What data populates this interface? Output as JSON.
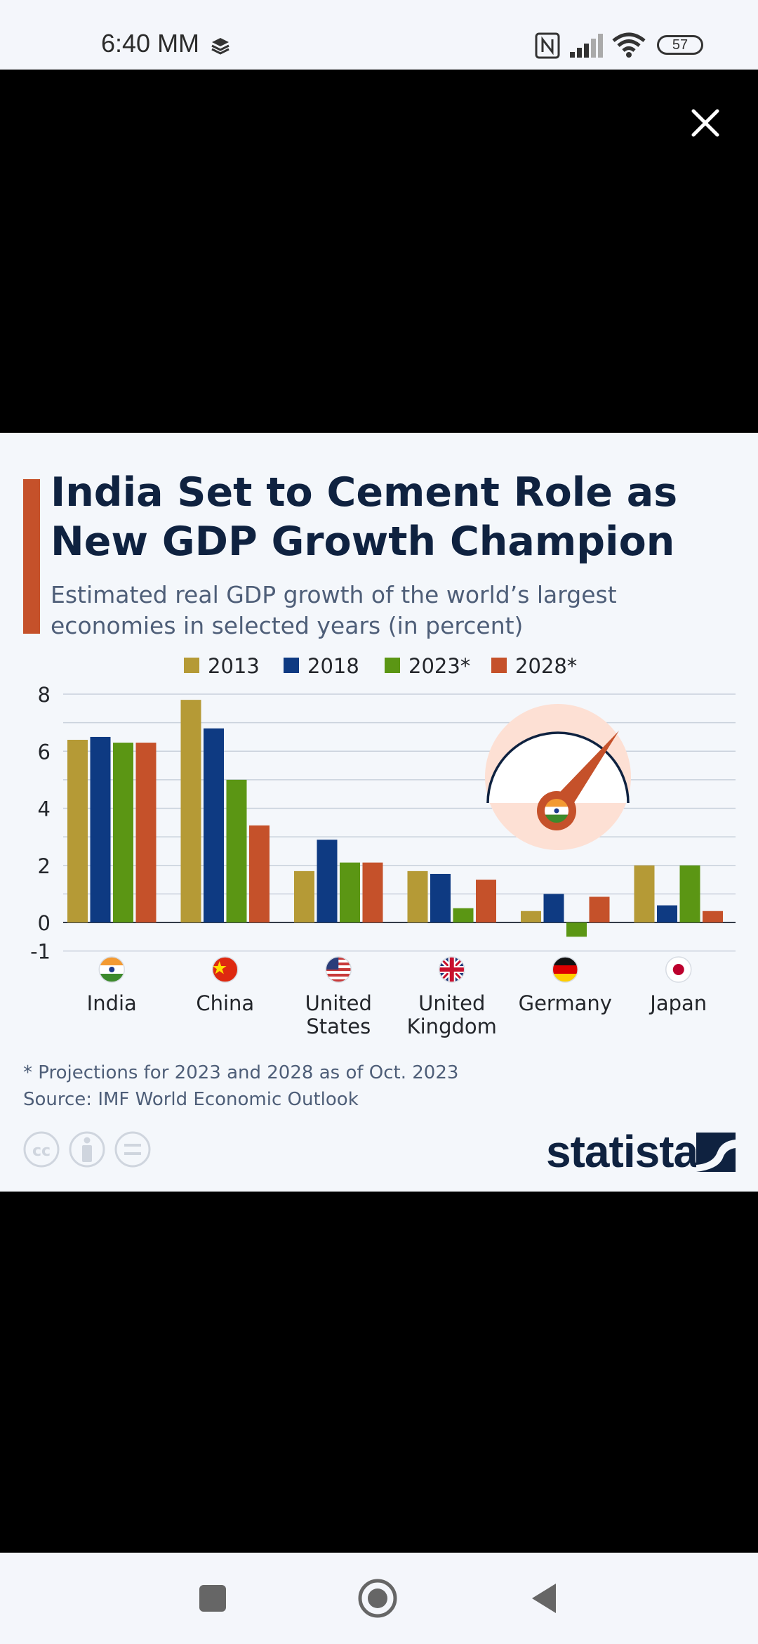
{
  "status_bar": {
    "time": "6:40 MM",
    "battery": "57"
  },
  "infographic": {
    "title_line1": "India Set to Cement Role as",
    "title_line2": "New GDP Growth Champion",
    "subtitle_line1": "Estimated real GDP growth of the world’s largest",
    "subtitle_line2": "economies in selected years (in percent)",
    "footnote": "* Projections for 2023 and 2028 as of Oct. 2023",
    "source": "Source: IMF World Economic Outlook",
    "brand": "statista"
  },
  "chart_data": {
    "type": "bar",
    "categories": [
      [
        "India"
      ],
      [
        "China"
      ],
      [
        "United",
        "States"
      ],
      [
        "United",
        "Kingdom"
      ],
      [
        "Germany"
      ],
      [
        "Japan"
      ]
    ],
    "flags": [
      "india-flag",
      "china-flag",
      "usa-flag",
      "uk-flag",
      "germany-flag",
      "japan-flag"
    ],
    "series": [
      {
        "name": "2013",
        "color": "#b59a36",
        "values": [
          6.4,
          7.8,
          1.8,
          1.8,
          0.4,
          2.0
        ]
      },
      {
        "name": "2018",
        "color": "#0e3a82",
        "values": [
          6.5,
          6.8,
          2.9,
          1.7,
          1.0,
          0.6
        ]
      },
      {
        "name": "2023*",
        "color": "#5b9614",
        "values": [
          6.3,
          5.0,
          2.1,
          0.5,
          -0.5,
          2.0
        ]
      },
      {
        "name": "2028*",
        "color": "#c5512a",
        "values": [
          6.3,
          3.4,
          2.1,
          1.5,
          0.9,
          0.4
        ]
      }
    ],
    "yticks": [
      "8",
      "6",
      "4",
      "2",
      "0",
      "-1"
    ],
    "ytick_values": [
      8,
      6,
      4,
      2,
      0,
      -1
    ],
    "ylim": [
      -1,
      8
    ],
    "legend_position": "top"
  }
}
